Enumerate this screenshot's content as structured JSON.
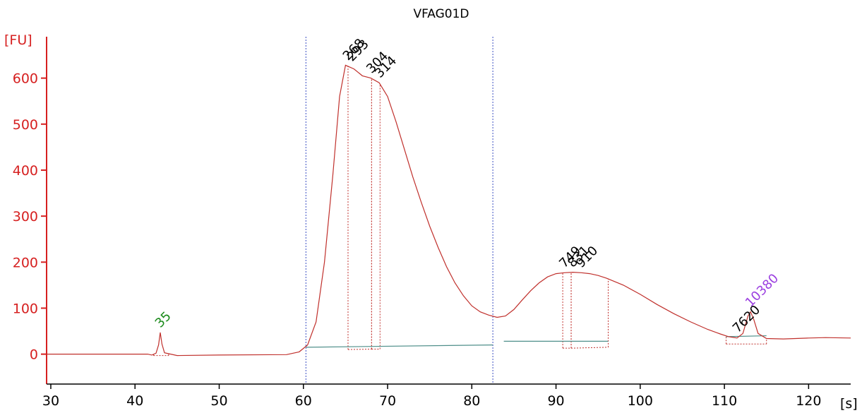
{
  "chart_data": {
    "type": "line",
    "title": "VFAG01D",
    "xlabel": "[s]",
    "ylabel": "[FU]",
    "xlim": [
      29.5,
      125
    ],
    "ylim": [
      -65,
      690
    ],
    "xticks": [
      30,
      40,
      50,
      60,
      70,
      80,
      90,
      100,
      110,
      120
    ],
    "yticks": [
      0,
      100,
      200,
      300,
      400,
      500,
      600
    ],
    "colors": {
      "trace": "#c0302c",
      "axis": "#d62020",
      "baseline": "#4f8f8a",
      "region_marker": "#3a4ec2",
      "lower_marker_label": "#1a8a1a",
      "upper_marker_label": "#9b3fe0",
      "peak_label": "#000000"
    },
    "series": [
      {
        "values_xy": [
          [
            29.5,
            0
          ],
          [
            41.5,
            0
          ],
          [
            42.0,
            -2
          ],
          [
            42.5,
            2
          ],
          [
            42.8,
            20
          ],
          [
            43.0,
            47
          ],
          [
            43.2,
            22
          ],
          [
            43.5,
            3
          ],
          [
            44.0,
            1
          ],
          [
            45.0,
            -3
          ],
          [
            50.0,
            -2
          ],
          [
            58.0,
            -1
          ],
          [
            59.5,
            5
          ],
          [
            60.5,
            20
          ],
          [
            61.5,
            70
          ],
          [
            62.5,
            200
          ],
          [
            63.5,
            390
          ],
          [
            64.3,
            560
          ],
          [
            65.0,
            628
          ],
          [
            66.0,
            620
          ],
          [
            67.0,
            605
          ],
          [
            68.0,
            600
          ],
          [
            69.0,
            590
          ],
          [
            70.0,
            560
          ],
          [
            71.0,
            505
          ],
          [
            72.0,
            445
          ],
          [
            73.0,
            385
          ],
          [
            74.0,
            330
          ],
          [
            75.0,
            278
          ],
          [
            76.0,
            232
          ],
          [
            77.0,
            190
          ],
          [
            78.0,
            155
          ],
          [
            79.0,
            127
          ],
          [
            80.0,
            105
          ],
          [
            81.0,
            92
          ],
          [
            82.0,
            85
          ],
          [
            83.0,
            80
          ],
          [
            84.0,
            83
          ],
          [
            85.0,
            97
          ],
          [
            86.0,
            118
          ],
          [
            87.0,
            138
          ],
          [
            88.0,
            155
          ],
          [
            89.0,
            168
          ],
          [
            90.0,
            175
          ],
          [
            91.0,
            177
          ],
          [
            92.0,
            178
          ],
          [
            93.0,
            177
          ],
          [
            94.0,
            175
          ],
          [
            95.0,
            171
          ],
          [
            96.0,
            165
          ],
          [
            98.0,
            150
          ],
          [
            100.0,
            130
          ],
          [
            102.0,
            108
          ],
          [
            104.0,
            88
          ],
          [
            106.0,
            70
          ],
          [
            108.0,
            54
          ],
          [
            109.5,
            44
          ],
          [
            110.5,
            38
          ],
          [
            111.5,
            35
          ],
          [
            112.2,
            45
          ],
          [
            112.8,
            83
          ],
          [
            113.1,
            92
          ],
          [
            113.5,
            75
          ],
          [
            114.0,
            45
          ],
          [
            115.0,
            34
          ],
          [
            117.0,
            33
          ],
          [
            120.0,
            35
          ],
          [
            122.0,
            36
          ],
          [
            125.0,
            35
          ]
        ]
      }
    ],
    "region_markers": [
      60.3,
      82.5
    ],
    "baselines": [
      {
        "x": [
          60.3,
          82.5
        ],
        "y": [
          15,
          20
        ]
      },
      {
        "x": [
          83.8,
          96.2
        ],
        "y": [
          28,
          28
        ]
      },
      {
        "x": [
          110.2,
          115.0
        ],
        "y": [
          38,
          40
        ]
      }
    ],
    "peaks": [
      {
        "label": "35",
        "x": 43.0,
        "y": 47,
        "color": "lower_marker_label"
      },
      {
        "label": "268",
        "x": 65.3,
        "y": 628,
        "color": "peak_label"
      },
      {
        "label": "293",
        "x": 65.8,
        "y": 626,
        "color": "peak_label"
      },
      {
        "label": "304",
        "x": 68.1,
        "y": 600,
        "color": "peak_label"
      },
      {
        "label": "314",
        "x": 69.1,
        "y": 590,
        "color": "peak_label"
      },
      {
        "label": "749",
        "x": 91.0,
        "y": 177,
        "color": "peak_label"
      },
      {
        "label": "831",
        "x": 92.0,
        "y": 178,
        "color": "peak_label"
      },
      {
        "label": "910",
        "x": 93.0,
        "y": 177,
        "color": "peak_label"
      },
      {
        "label": "7620",
        "x": 111.6,
        "y": 36,
        "color": "peak_label"
      },
      {
        "label": "10380",
        "x": 113.1,
        "y": 92,
        "color": "upper_marker_label"
      }
    ],
    "peak_regions": [
      {
        "x": [
          42.2,
          44.0
        ],
        "y": [
          3,
          3
        ]
      },
      {
        "x": [
          65.3,
          68.1
        ],
        "y": [
          16,
          17
        ]
      },
      {
        "x": [
          68.1,
          69.1
        ],
        "y": [
          17,
          17
        ]
      },
      {
        "x": [
          90.8,
          91.8
        ],
        "y": [
          19,
          19
        ]
      },
      {
        "x": [
          91.8,
          96.2
        ],
        "y": [
          19,
          21
        ]
      },
      {
        "x": [
          110.2,
          115.0
        ],
        "y": [
          28,
          28
        ]
      }
    ]
  }
}
